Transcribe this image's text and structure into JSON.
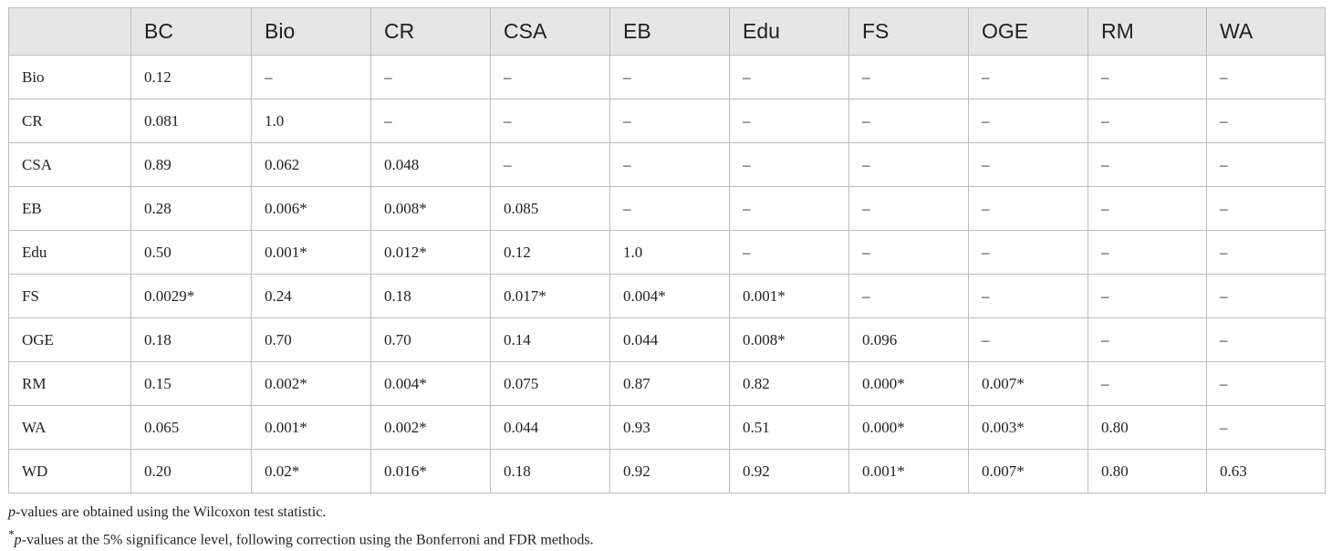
{
  "table": {
    "columns": [
      "BC",
      "Bio",
      "CR",
      "CSA",
      "EB",
      "Edu",
      "FS",
      "OGE",
      "RM",
      "WA"
    ],
    "rows": [
      [
        "Bio",
        "0.12",
        "–",
        "–",
        "–",
        "–",
        "–",
        "–",
        "–",
        "–",
        "–"
      ],
      [
        "CR",
        "0.081",
        "1.0",
        "–",
        "–",
        "–",
        "–",
        "–",
        "–",
        "–",
        "–"
      ],
      [
        "CSA",
        "0.89",
        "0.062",
        "0.048",
        "–",
        "–",
        "–",
        "–",
        "–",
        "–",
        "–"
      ],
      [
        "EB",
        "0.28",
        "0.006*",
        "0.008*",
        "0.085",
        "–",
        "–",
        "–",
        "–",
        "–",
        "–"
      ],
      [
        "Edu",
        "0.50",
        "0.001*",
        "0.012*",
        "0.12",
        "1.0",
        "–",
        "–",
        "–",
        "–",
        "–"
      ],
      [
        "FS",
        "0.0029*",
        "0.24",
        "0.18",
        "0.017*",
        "0.004*",
        "0.001*",
        "–",
        "–",
        "–",
        "–"
      ],
      [
        "OGE",
        "0.18",
        "0.70",
        "0.70",
        "0.14",
        "0.044",
        "0.008*",
        "0.096",
        "–",
        "–",
        "–"
      ],
      [
        "RM",
        "0.15",
        "0.002*",
        "0.004*",
        "0.075",
        "0.87",
        "0.82",
        "0.000*",
        "0.007*",
        "–",
        "–"
      ],
      [
        "WA",
        "0.065",
        "0.001*",
        "0.002*",
        "0.044",
        "0.93",
        "0.51",
        "0.000*",
        "0.003*",
        "0.80",
        "–"
      ],
      [
        "WD",
        "0.20",
        "0.02*",
        "0.016*",
        "0.18",
        "0.92",
        "0.92",
        "0.001*",
        "0.007*",
        "0.80",
        "0.63"
      ]
    ]
  },
  "notes": [
    {
      "italic": "p",
      "text": "-values are obtained using the Wilcoxon test statistic."
    },
    {
      "marker": "*",
      "italic": "p",
      "text": "-values at the 5% significance level, following correction using the Bonferroni and FDR methods."
    }
  ]
}
